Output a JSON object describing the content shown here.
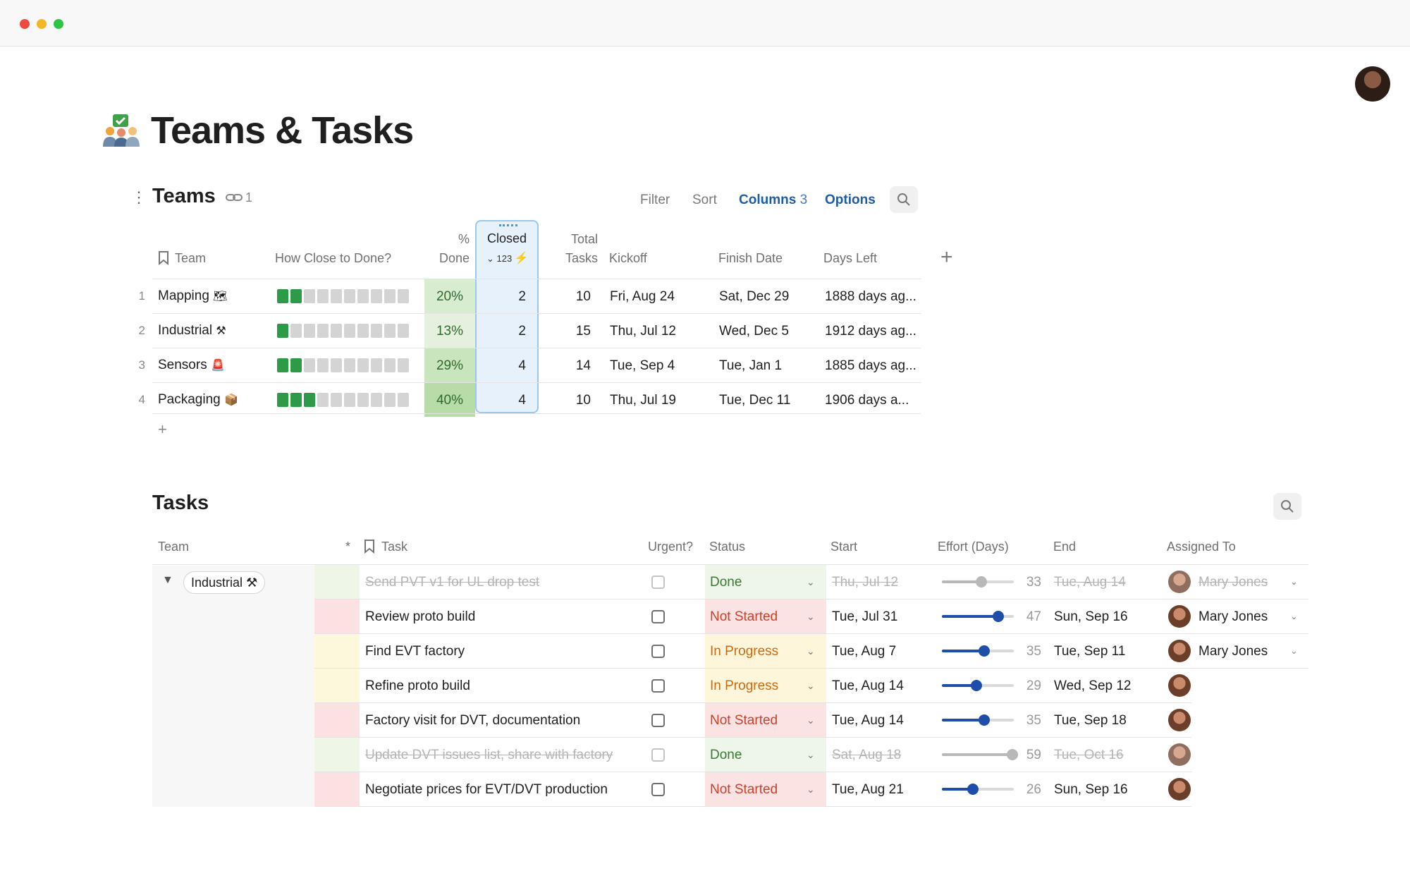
{
  "page": {
    "title": "Teams & Tasks",
    "icon": "team-tasks-icon"
  },
  "teams": {
    "title": "Teams",
    "link_count": "1",
    "toolbar": {
      "filter": "Filter",
      "sort": "Sort",
      "columns": "Columns",
      "columns_count": "3",
      "options": "Options"
    },
    "headers": {
      "team": "Team",
      "how_close": "How Close to Done?",
      "pct_line1": "%",
      "pct_line2": "Done",
      "closed": "Closed",
      "closed_meta": "⌄ 123",
      "total_line1": "Total",
      "total_line2": "Tasks",
      "kickoff": "Kickoff",
      "finish": "Finish Date",
      "days_left": "Days Left"
    },
    "rows": [
      {
        "n": "1",
        "team": "Mapping",
        "emoji": "🗺",
        "filled": 2,
        "pct": "20%",
        "closed": "2",
        "total": "10",
        "kickoff": "Fri, Aug 24",
        "finish": "Sat, Dec 29",
        "days_left": "1888 days ag..."
      },
      {
        "n": "2",
        "team": "Industrial",
        "emoji": "⚒",
        "filled": 1,
        "pct": "13%",
        "closed": "2",
        "total": "15",
        "kickoff": "Thu, Jul 12",
        "finish": "Wed, Dec 5",
        "days_left": "1912 days ag..."
      },
      {
        "n": "3",
        "team": "Sensors",
        "emoji": "🚨",
        "filled": 2,
        "pct": "29%",
        "closed": "4",
        "total": "14",
        "kickoff": "Tue, Sep 4",
        "finish": "Tue, Jan 1",
        "days_left": "1885 days ag..."
      },
      {
        "n": "4",
        "team": "Packaging",
        "emoji": "📦",
        "filled": 3,
        "pct": "40%",
        "closed": "4",
        "total": "10",
        "kickoff": "Thu, Jul 19",
        "finish": "Tue, Dec 11",
        "days_left": "1906 days a..."
      }
    ]
  },
  "tasks": {
    "title": "Tasks",
    "headers": {
      "team": "Team",
      "star": "*",
      "task": "Task",
      "urgent": "Urgent?",
      "status": "Status",
      "start": "Start",
      "effort": "Effort (Days)",
      "end": "End",
      "assigned": "Assigned To"
    },
    "group": {
      "label": "Industrial",
      "emoji": "⚒"
    },
    "rows": [
      {
        "task": "Send PVT v1 for UL drop test",
        "done": true,
        "priority": "low",
        "status": "Done",
        "start": "Thu, Jul 12",
        "effort": 33,
        "effort_label": "33",
        "end": "Tue, Aug 14",
        "assignee": "Mary Jones"
      },
      {
        "task": "Review proto build",
        "done": false,
        "priority": "high",
        "status": "Not Started",
        "start": "Tue, Jul 31",
        "effort": 47,
        "effort_label": "47",
        "end": "Sun, Sep 16",
        "assignee": "Mary Jones"
      },
      {
        "task": "Find EVT factory",
        "done": false,
        "priority": "medium",
        "status": "In Progress",
        "start": "Tue, Aug 7",
        "effort": 35,
        "effort_label": "35",
        "end": "Tue, Sep 11",
        "assignee": "Mary Jones"
      },
      {
        "task": "Refine proto build",
        "done": false,
        "priority": "medium",
        "status": "In Progress",
        "start": "Tue, Aug 14",
        "effort": 29,
        "effort_label": "29",
        "end": "Wed, Sep 12",
        "assignee": ""
      },
      {
        "task": "Factory visit for DVT, documentation",
        "done": false,
        "priority": "high",
        "status": "Not Started",
        "start": "Tue, Aug 14",
        "effort": 35,
        "effort_label": "35",
        "end": "Tue, Sep 18",
        "assignee": ""
      },
      {
        "task": "Update DVT issues list, share with factory",
        "done": true,
        "priority": "low",
        "status": "Done",
        "start": "Sat, Aug 18",
        "effort": 59,
        "effort_label": "59",
        "end": "Tue, Oct 16",
        "assignee": ""
      },
      {
        "task": "Negotiate prices for EVT/DVT production",
        "done": false,
        "priority": "high",
        "status": "Not Started",
        "start": "Tue, Aug 21",
        "effort": 26,
        "effort_label": "26",
        "end": "Sun, Sep 16",
        "assignee": ""
      }
    ]
  },
  "colors": {
    "accent": "#1e5ba8",
    "progress_on": "#2d9a48",
    "status": {
      "Done": "#edf6e8",
      "Not Started": "#fbe3e3",
      "In Progress": "#fdf6da"
    },
    "status_text": {
      "Done": "#3b7a34",
      "Not Started": "#c9412b",
      "In Progress": "#cc6a12"
    },
    "priority": {
      "low": "#eef6e8",
      "high": "#fbe1e1",
      "medium": "#fdf8dc"
    },
    "pct_fill": [
      "#d8ecd0",
      "#e5f1de",
      "#c9e5bd",
      "#b7dca8"
    ]
  }
}
